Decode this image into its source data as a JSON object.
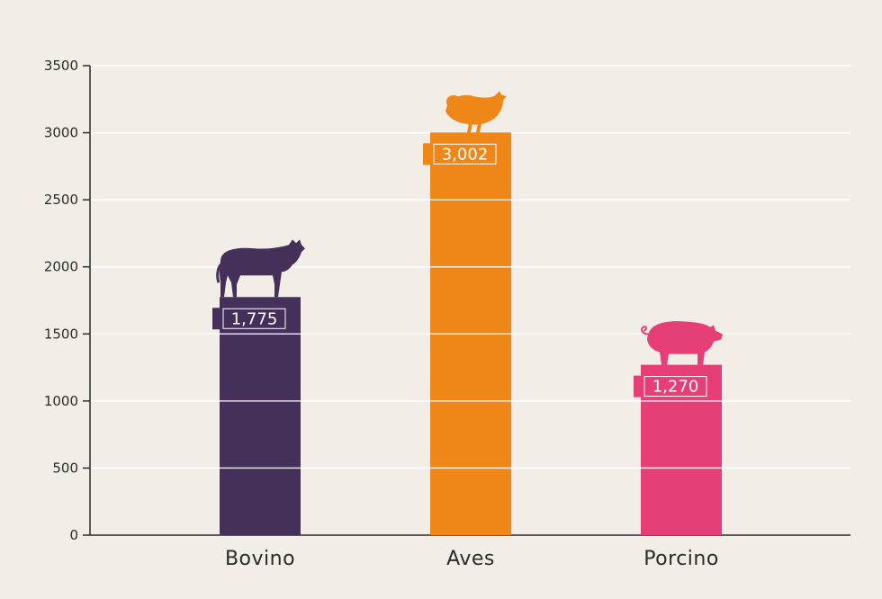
{
  "chart_data": {
    "type": "bar",
    "categories": [
      "Bovino",
      "Aves",
      "Porcino"
    ],
    "values": [
      1775,
      3002,
      1270
    ],
    "value_labels": [
      "1,775",
      "3,002",
      "1,270"
    ],
    "icons": [
      "cow-icon",
      "chicken-icon",
      "pig-icon"
    ],
    "colors": [
      "#45305a",
      "#ef8718",
      "#e63e76"
    ],
    "yticks": [
      0,
      500,
      1000,
      1500,
      2000,
      2500,
      3000,
      3500
    ],
    "ylim": [
      0,
      3500
    ],
    "grid": true,
    "legend": "none",
    "title": "",
    "xlabel": "",
    "ylabel": ""
  }
}
